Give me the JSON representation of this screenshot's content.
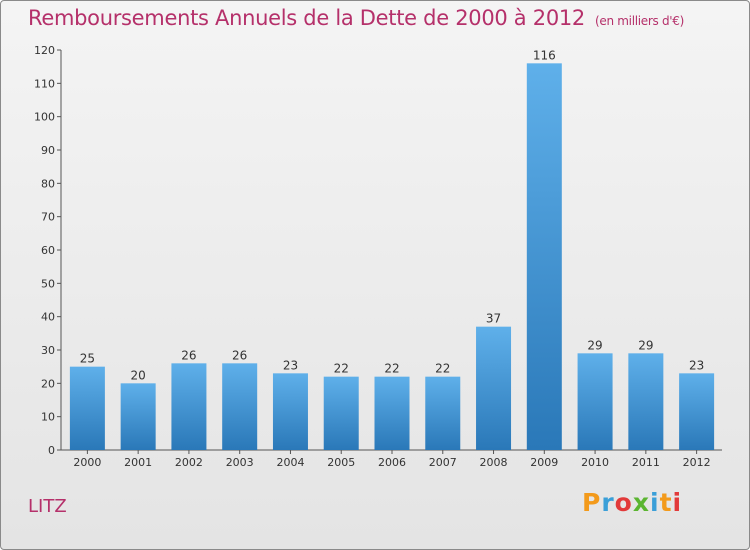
{
  "header": {
    "title": "Remboursements Annuels de la Dette de 2000 à 2012",
    "subtitle": "(en milliers d'€)"
  },
  "commune": "LITZ",
  "logo": {
    "text": "Proxiti",
    "colors": [
      "#f39a1b",
      "#3a9fd8",
      "#e23a3a",
      "#5bb531",
      "#3a9fd8",
      "#f39a1b",
      "#e23a3a"
    ]
  },
  "colors": {
    "title": "#b5306a",
    "bar_top": "#5fb0ea",
    "bar_bottom": "#2a78b8"
  },
  "chart_data": {
    "type": "bar",
    "title": "Remboursements Annuels de la Dette de 2000 à 2012",
    "xlabel": "",
    "ylabel": "",
    "ylim": [
      0,
      120
    ],
    "yticks": [
      0,
      10,
      20,
      30,
      40,
      50,
      60,
      70,
      80,
      90,
      100,
      110,
      120
    ],
    "categories": [
      "2000",
      "2001",
      "2002",
      "2003",
      "2004",
      "2005",
      "2006",
      "2007",
      "2008",
      "2009",
      "2010",
      "2011",
      "2012"
    ],
    "values": [
      25,
      20,
      26,
      26,
      23,
      22,
      22,
      22,
      37,
      116,
      29,
      29,
      23
    ],
    "grid": false,
    "legend": "none"
  }
}
